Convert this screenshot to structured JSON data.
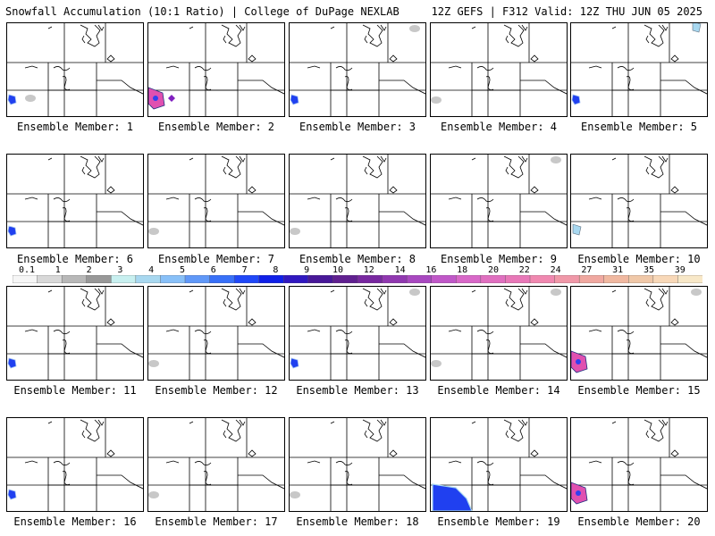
{
  "header": {
    "title_left": "Snowfall Accumulation (10:1 Ratio) | College of DuPage NEXLAB",
    "title_right": "12Z GEFS | F312 Valid: 12Z THU JUN 05 2025"
  },
  "members": [
    {
      "label": "Ensemble Member: 1",
      "snow": [
        {
          "kind": "blue",
          "loc": "w-low"
        },
        {
          "kind": "gray",
          "loc": "w-mid"
        }
      ]
    },
    {
      "label": "Ensemble Member: 2",
      "snow": [
        {
          "kind": "heavy",
          "loc": "w-low"
        },
        {
          "kind": "purple",
          "loc": "w-mid"
        }
      ]
    },
    {
      "label": "Ensemble Member: 3",
      "snow": [
        {
          "kind": "blue",
          "loc": "w-low"
        },
        {
          "kind": "gray",
          "loc": "ne"
        }
      ]
    },
    {
      "label": "Ensemble Member: 4",
      "snow": [
        {
          "kind": "gray",
          "loc": "w-low"
        }
      ]
    },
    {
      "label": "Ensemble Member: 5",
      "snow": [
        {
          "kind": "blue",
          "loc": "w-low"
        },
        {
          "kind": "light",
          "loc": "ne"
        }
      ]
    },
    {
      "label": "Ensemble Member: 6",
      "snow": [
        {
          "kind": "blue",
          "loc": "w-low"
        }
      ]
    },
    {
      "label": "Ensemble Member: 7",
      "snow": [
        {
          "kind": "gray",
          "loc": "w-low"
        }
      ]
    },
    {
      "label": "Ensemble Member: 8",
      "snow": [
        {
          "kind": "gray",
          "loc": "w-low"
        }
      ]
    },
    {
      "label": "Ensemble Member: 9",
      "snow": [
        {
          "kind": "gray",
          "loc": "ne"
        }
      ]
    },
    {
      "label": "Ensemble Member: 10",
      "snow": [
        {
          "kind": "light",
          "loc": "w-low"
        }
      ]
    },
    {
      "label": "Ensemble Member: 11",
      "snow": [
        {
          "kind": "blue",
          "loc": "w-low"
        }
      ]
    },
    {
      "label": "Ensemble Member: 12",
      "snow": [
        {
          "kind": "gray",
          "loc": "w-low"
        }
      ]
    },
    {
      "label": "Ensemble Member: 13",
      "snow": [
        {
          "kind": "blue",
          "loc": "w-low"
        },
        {
          "kind": "gray",
          "loc": "ne"
        }
      ]
    },
    {
      "label": "Ensemble Member: 14",
      "snow": [
        {
          "kind": "gray",
          "loc": "w-low"
        },
        {
          "kind": "gray",
          "loc": "ne"
        }
      ]
    },
    {
      "label": "Ensemble Member: 15",
      "snow": [
        {
          "kind": "heavy",
          "loc": "w-low"
        },
        {
          "kind": "gray",
          "loc": "ne"
        }
      ]
    },
    {
      "label": "Ensemble Member: 16",
      "snow": [
        {
          "kind": "blue",
          "loc": "w-low"
        }
      ]
    },
    {
      "label": "Ensemble Member: 17",
      "snow": [
        {
          "kind": "gray",
          "loc": "w-low"
        }
      ]
    },
    {
      "label": "Ensemble Member: 18",
      "snow": [
        {
          "kind": "gray",
          "loc": "w-low"
        }
      ]
    },
    {
      "label": "Ensemble Member: 19",
      "snow": [
        {
          "kind": "blue-wide",
          "loc": "w-bottom"
        }
      ]
    },
    {
      "label": "Ensemble Member: 20",
      "snow": [
        {
          "kind": "heavy",
          "loc": "w-low"
        }
      ]
    }
  ],
  "colorbar": {
    "labels": [
      "0.1",
      "1",
      "2",
      "3",
      "4",
      "5",
      "6",
      "7",
      "8",
      "9",
      "10",
      "12",
      "14",
      "16",
      "18",
      "20",
      "22",
      "24",
      "27",
      "31",
      "35",
      "39"
    ],
    "colors": [
      "#f6f6f6",
      "#d8d8d8",
      "#b8b8b8",
      "#989898",
      "#c8f0f0",
      "#a8d8f0",
      "#88c0f8",
      "#6098f8",
      "#3870f8",
      "#2048f8",
      "#1020e8",
      "#3018c0",
      "#481898",
      "#602090",
      "#7828a0",
      "#9038b0",
      "#a848c0",
      "#c058c8",
      "#d868c8",
      "#e070c0",
      "#e878b8",
      "#f088b0",
      "#f098a8",
      "#f0a8a0",
      "#f0b8a0",
      "#f0c8a8",
      "#f8d8b8",
      "#f8e8c8"
    ]
  },
  "colors": {
    "heavy": "#e050b0",
    "heavy_core": "#3040f0",
    "blue": "#2040f0",
    "light": "#a8d8f0",
    "gray": "#c8c8c8",
    "purple": "#8020c0"
  }
}
